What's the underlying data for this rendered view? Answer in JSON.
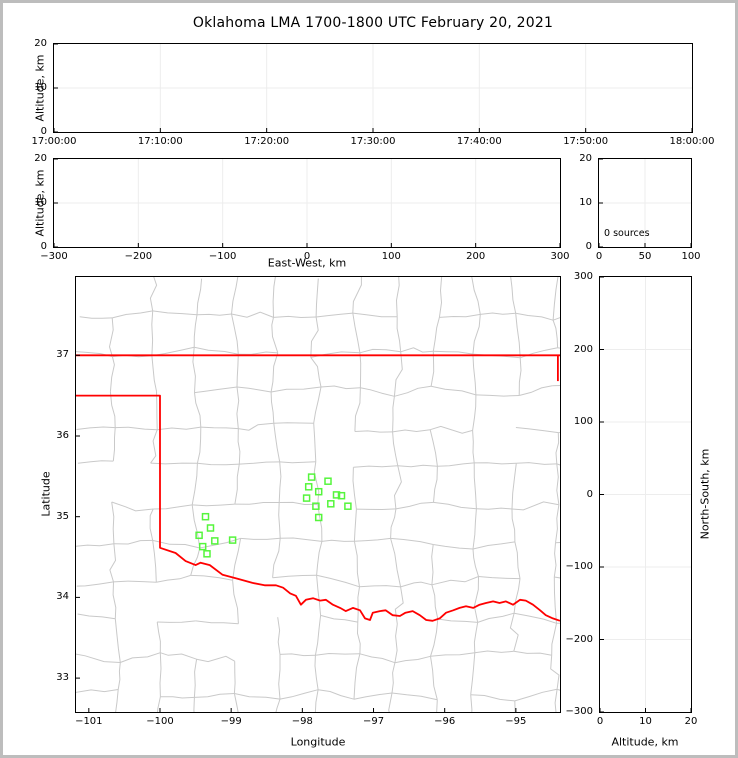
{
  "title": "Oklahoma LMA 1700-1800 UTC February 20, 2021",
  "colors": {
    "station_marker": "#55f53c",
    "state_border": "#ff0000",
    "county_line": "#c9c9c9",
    "grid_line": "#ededed",
    "axis_frame": "#000000",
    "figure_border": "#bdbdbd",
    "text": "#000000"
  },
  "chart_data": [
    {
      "id": "time_height",
      "type": "scatter",
      "xlabel": "",
      "ylabel": "Altitude, km",
      "xlim": [
        0,
        60
      ],
      "ylim": [
        0,
        20
      ],
      "x_ticks": [
        {
          "v": 0,
          "label": "17:00:00"
        },
        {
          "v": 10,
          "label": "17:10:00"
        },
        {
          "v": 20,
          "label": "17:20:00"
        },
        {
          "v": 30,
          "label": "17:30:00"
        },
        {
          "v": 40,
          "label": "17:40:00"
        },
        {
          "v": 50,
          "label": "17:50:00"
        },
        {
          "v": 60,
          "label": "18:00:00"
        }
      ],
      "y_ticks": [
        {
          "v": 0,
          "label": "0"
        },
        {
          "v": 10,
          "label": "10"
        },
        {
          "v": 20,
          "label": "20"
        }
      ],
      "points": []
    },
    {
      "id": "ew_height",
      "type": "scatter",
      "xlabel": "East-West, km",
      "ylabel": "Altitude, km",
      "xlim": [
        -300,
        300
      ],
      "ylim": [
        0,
        20
      ],
      "x_ticks": [
        {
          "v": -300,
          "label": "−300"
        },
        {
          "v": -200,
          "label": "−200"
        },
        {
          "v": -100,
          "label": "−100"
        },
        {
          "v": 0,
          "label": "0"
        },
        {
          "v": 100,
          "label": "100"
        },
        {
          "v": 200,
          "label": "200"
        },
        {
          "v": 300,
          "label": "300"
        }
      ],
      "y_ticks": [
        {
          "v": 0,
          "label": "0"
        },
        {
          "v": 10,
          "label": "10"
        },
        {
          "v": 20,
          "label": "20"
        }
      ],
      "points": []
    },
    {
      "id": "altitude_histogram",
      "type": "bar",
      "xlabel": "",
      "ylabel": "",
      "annotation": "0 sources",
      "xlim": [
        0,
        100
      ],
      "ylim": [
        0,
        20
      ],
      "x_ticks": [
        {
          "v": 0,
          "label": "0"
        },
        {
          "v": 50,
          "label": "50"
        },
        {
          "v": 100,
          "label": "100"
        }
      ],
      "y_ticks": [
        {
          "v": 0,
          "label": "0"
        },
        {
          "v": 10,
          "label": "10"
        },
        {
          "v": 20,
          "label": "20"
        }
      ],
      "points": []
    },
    {
      "id": "plan_view_map",
      "type": "scatter",
      "xlabel": "Longitude",
      "ylabel": "Latitude",
      "xlim": [
        -101.18,
        -94.38
      ],
      "ylim": [
        32.58,
        37.97
      ],
      "x_ticks": [
        {
          "v": -101,
          "label": "−101"
        },
        {
          "v": -100,
          "label": "−100"
        },
        {
          "v": -99,
          "label": "−99"
        },
        {
          "v": -98,
          "label": "−98"
        },
        {
          "v": -97,
          "label": "−97"
        },
        {
          "v": -96,
          "label": "−96"
        },
        {
          "v": -95,
          "label": "−95"
        }
      ],
      "y_ticks": [
        {
          "v": 33,
          "label": "33"
        },
        {
          "v": 34,
          "label": "34"
        },
        {
          "v": 35,
          "label": "35"
        },
        {
          "v": 36,
          "label": "36"
        },
        {
          "v": 37,
          "label": "37"
        }
      ],
      "stations": [
        [
          -97.87,
          35.49
        ],
        [
          -97.64,
          35.44
        ],
        [
          -97.91,
          35.37
        ],
        [
          -97.77,
          35.31
        ],
        [
          -97.94,
          35.23
        ],
        [
          -97.52,
          35.27
        ],
        [
          -97.45,
          35.26
        ],
        [
          -97.6,
          35.16
        ],
        [
          -97.36,
          35.13
        ],
        [
          -97.81,
          35.13
        ],
        [
          -97.77,
          34.99
        ],
        [
          -99.36,
          35.0
        ],
        [
          -99.29,
          34.86
        ],
        [
          -99.45,
          34.77
        ],
        [
          -99.23,
          34.7
        ],
        [
          -98.98,
          34.71
        ],
        [
          -99.4,
          34.63
        ],
        [
          -99.34,
          34.54
        ]
      ],
      "state_border_segments": [
        [
          [
            -101.18,
            37.0
          ],
          [
            -94.38,
            37.0
          ]
        ],
        [
          [
            -94.41,
            37.0
          ],
          [
            -94.41,
            36.68
          ]
        ],
        [
          [
            -101.18,
            36.5
          ],
          [
            -100.0,
            36.5
          ],
          [
            -100.0,
            34.615
          ],
          [
            -99.78,
            34.55
          ],
          [
            -99.64,
            34.45
          ],
          [
            -99.5,
            34.4
          ],
          [
            -99.43,
            34.43
          ],
          [
            -99.3,
            34.4
          ],
          [
            -99.12,
            34.28
          ],
          [
            -98.91,
            34.23
          ],
          [
            -98.7,
            34.18
          ],
          [
            -98.53,
            34.15
          ],
          [
            -98.37,
            34.15
          ],
          [
            -98.27,
            34.12
          ],
          [
            -98.17,
            34.05
          ],
          [
            -98.09,
            34.02
          ],
          [
            -98.02,
            33.91
          ],
          [
            -97.95,
            33.97
          ],
          [
            -97.85,
            33.99
          ],
          [
            -97.75,
            33.96
          ],
          [
            -97.67,
            33.97
          ],
          [
            -97.57,
            33.91
          ],
          [
            -97.47,
            33.87
          ],
          [
            -97.39,
            33.83
          ],
          [
            -97.29,
            33.87
          ],
          [
            -97.19,
            33.84
          ],
          [
            -97.12,
            33.74
          ],
          [
            -97.05,
            33.72
          ],
          [
            -97.01,
            33.81
          ],
          [
            -96.91,
            33.83
          ],
          [
            -96.83,
            33.84
          ],
          [
            -96.73,
            33.78
          ],
          [
            -96.63,
            33.77
          ],
          [
            -96.55,
            33.81
          ],
          [
            -96.45,
            33.83
          ],
          [
            -96.35,
            33.78
          ],
          [
            -96.26,
            33.72
          ],
          [
            -96.17,
            33.71
          ],
          [
            -96.07,
            33.74
          ],
          [
            -95.98,
            33.81
          ],
          [
            -95.88,
            33.84
          ],
          [
            -95.79,
            33.87
          ],
          [
            -95.7,
            33.89
          ],
          [
            -95.6,
            33.87
          ],
          [
            -95.51,
            33.91
          ],
          [
            -95.42,
            33.93
          ],
          [
            -95.32,
            33.95
          ],
          [
            -95.23,
            33.93
          ],
          [
            -95.14,
            33.95
          ],
          [
            -95.04,
            33.91
          ],
          [
            -94.94,
            33.97
          ],
          [
            -94.86,
            33.96
          ],
          [
            -94.76,
            33.91
          ],
          [
            -94.66,
            33.84
          ],
          [
            -94.58,
            33.78
          ],
          [
            -94.48,
            33.74
          ],
          [
            -94.38,
            33.71
          ]
        ]
      ]
    },
    {
      "id": "ns_height",
      "type": "scatter",
      "xlabel": "Altitude, km",
      "ylabel": "North-South, km",
      "xlim": [
        0,
        20
      ],
      "ylim": [
        -300,
        300
      ],
      "x_ticks": [
        {
          "v": 0,
          "label": "0"
        },
        {
          "v": 10,
          "label": "10"
        },
        {
          "v": 20,
          "label": "20"
        }
      ],
      "y_ticks": [
        {
          "v": 300,
          "label": "300"
        },
        {
          "v": 200,
          "label": "200"
        },
        {
          "v": 100,
          "label": "100"
        },
        {
          "v": 0,
          "label": "0"
        },
        {
          "v": -100,
          "label": "−100"
        },
        {
          "v": -200,
          "label": "−200"
        },
        {
          "v": -300,
          "label": "−300"
        }
      ],
      "points": []
    }
  ]
}
